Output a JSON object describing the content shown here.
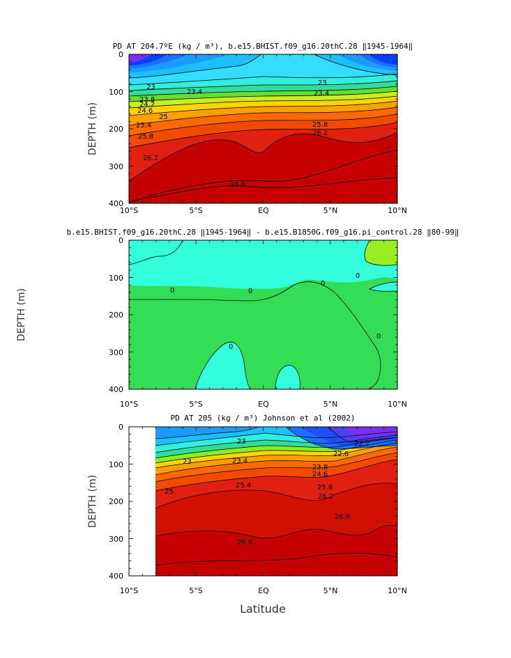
{
  "x_ticks": [
    "10°S",
    "5°S",
    "EQ",
    "5°N",
    "10°N"
  ],
  "y_ticks": [
    "0",
    "100",
    "200",
    "300",
    "400"
  ],
  "xlabel_bottom": "Latitude",
  "colors": {
    "deep_red": "#c40000",
    "red": "#e02010",
    "orange_red": "#f24a00",
    "orange": "#ff8a00",
    "yellow": "#ffd400",
    "green": "#33dd33",
    "light_green": "#99ee22",
    "cyan": "#33ffdd",
    "sky": "#33ddff",
    "blue": "#1c9bff",
    "deep_blue": "#0040ff",
    "violet": "#7a30f0"
  },
  "chart_data": [
    {
      "type": "contour",
      "title": "PD AT 204.7ºE (kg / m³), b.e15.BHIST.f09_g16.20thC.28 ‖1945-1964‖",
      "xlabel": "",
      "ylabel": "DEPTH (m)",
      "xlim": [
        -10,
        10
      ],
      "ylim": [
        400,
        0
      ],
      "contour_levels": [
        23,
        23.4,
        23.8,
        24.2,
        24.6,
        25,
        25.4,
        25.8,
        26.2,
        26.6
      ],
      "contour_labels": [
        "23",
        "23.4",
        "23.8",
        "24.2",
        "24.6",
        "25",
        "25.4",
        "25.8",
        "26.2",
        "26.6"
      ]
    },
    {
      "type": "contour",
      "title": "b.e15.BHIST.f09_g16.20thC.28 ‖1945-1964‖ - b.e15.B1850G.f09_g16.pi_control.28 ‖80-99‖",
      "xlabel": "",
      "ylabel": "DEPTH (m)",
      "xlim": [
        -10,
        10
      ],
      "ylim": [
        400,
        0
      ],
      "contour_levels": [
        0
      ],
      "contour_labels": [
        "0"
      ]
    },
    {
      "type": "contour",
      "title": "PD AT 205 (kg / m³) Johnson et al (2002)",
      "xlabel": "Latitude",
      "ylabel": "DEPTH (m)",
      "xlim": [
        -10,
        10
      ],
      "ylim": [
        400,
        0
      ],
      "contour_levels": [
        22.2,
        22.6,
        23,
        23.4,
        23.8,
        24.2,
        24.6,
        25,
        25.4,
        25.8,
        26.2,
        26.6
      ],
      "contour_labels": [
        "22.2",
        "22.6",
        "23",
        "23.4",
        "23.8",
        "24.2",
        "24.6",
        "25",
        "25.4",
        "25.8",
        "26.2",
        "26.6"
      ]
    }
  ]
}
